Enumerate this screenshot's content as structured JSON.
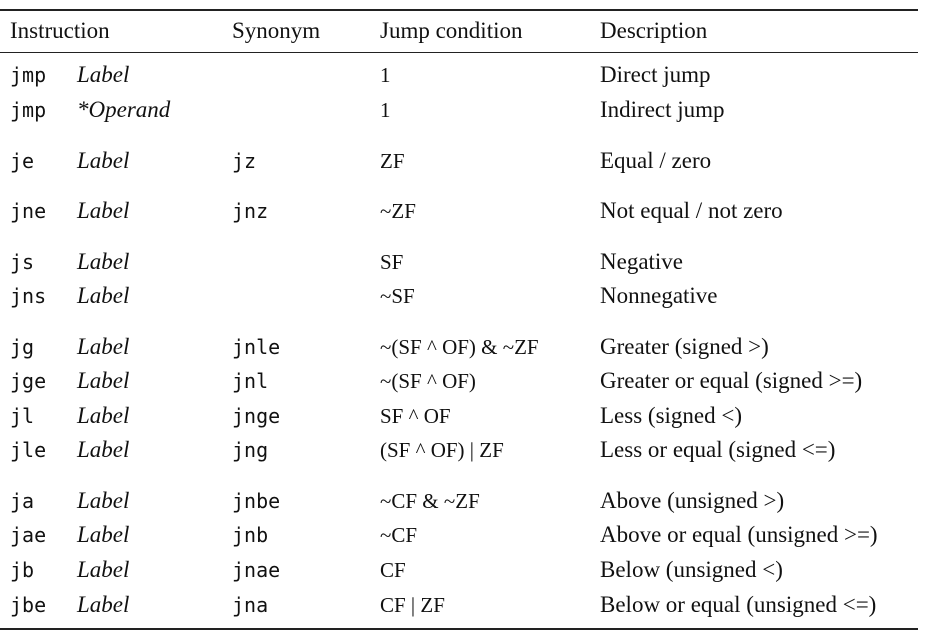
{
  "header": {
    "instruction": "Instruction",
    "synonym": "Synonym",
    "jump_condition": "Jump condition",
    "description": "Description"
  },
  "rows": [
    {
      "instr": "jmp",
      "operand": "Label",
      "synonym": "",
      "condition": "1",
      "description": "Direct jump"
    },
    {
      "instr": "jmp",
      "operand": "*Operand",
      "synonym": "",
      "condition": "1",
      "description": "Indirect jump"
    },
    {
      "instr": "je",
      "operand": "Label",
      "synonym": "jz",
      "condition": "ZF",
      "description": "Equal / zero"
    },
    {
      "instr": "jne",
      "operand": "Label",
      "synonym": "jnz",
      "condition": "~ZF",
      "description": "Not equal / not zero"
    },
    {
      "instr": "js",
      "operand": "Label",
      "synonym": "",
      "condition": "SF",
      "description": "Negative"
    },
    {
      "instr": "jns",
      "operand": "Label",
      "synonym": "",
      "condition": "~SF",
      "description": "Nonnegative"
    },
    {
      "instr": "jg",
      "operand": "Label",
      "synonym": "jnle",
      "condition": "~(SF ^ OF) & ~ZF",
      "description": "Greater (signed >)"
    },
    {
      "instr": "jge",
      "operand": "Label",
      "synonym": "jnl",
      "condition": "~(SF ^ OF)",
      "description": "Greater or equal (signed >=)"
    },
    {
      "instr": "jl",
      "operand": "Label",
      "synonym": "jnge",
      "condition": "SF ^ OF",
      "description": "Less (signed <)"
    },
    {
      "instr": "jle",
      "operand": "Label",
      "synonym": "jng",
      "condition": "(SF ^ OF) | ZF",
      "description": "Less or equal (signed <=)"
    },
    {
      "instr": "ja",
      "operand": "Label",
      "synonym": "jnbe",
      "condition": "~CF & ~ZF",
      "description": "Above (unsigned >)"
    },
    {
      "instr": "jae",
      "operand": "Label",
      "synonym": "jnb",
      "condition": "~CF",
      "description": "Above or equal (unsigned >=)"
    },
    {
      "instr": "jb",
      "operand": "Label",
      "synonym": "jnae",
      "condition": "CF",
      "description": "Below (unsigned <)"
    },
    {
      "instr": "jbe",
      "operand": "Label",
      "synonym": "jna",
      "condition": "CF | ZF",
      "description": "Below or equal (unsigned <=)"
    }
  ]
}
